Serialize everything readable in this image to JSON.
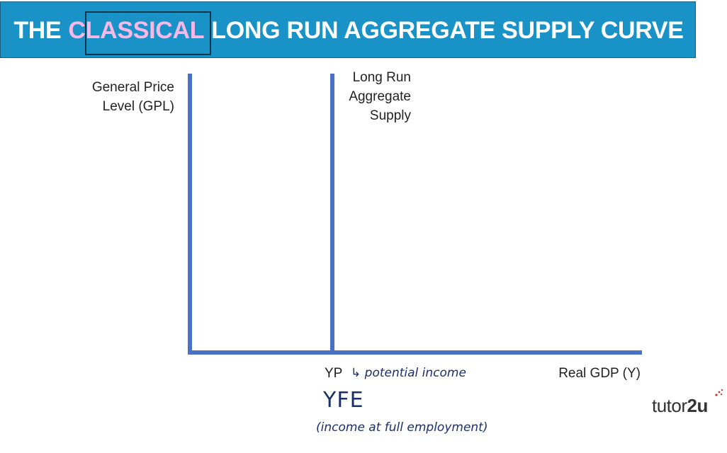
{
  "header": {
    "title_pre": "THE",
    "title_highlight": "CLASSICAL",
    "title_post": "LONG RUN AGGREGATE SUPPLY CURVE"
  },
  "diagram": {
    "y_axis_label": "General Price\nLevel (GPL)",
    "x_axis_label": "Real GDP (Y)",
    "curve_label": "Long Run\nAggregate\nSupply",
    "curve_x_label": "YP"
  },
  "annotations": {
    "potential_income": "↳ potential income",
    "yfe": "YFE",
    "full_employment": "(income at full employment)"
  },
  "brand": {
    "logo_regular": "tutor",
    "logo_bold": "2u"
  },
  "colors": {
    "banner": "#1993c7",
    "highlight_text": "#f7b8e6",
    "axis_line": "#4a72c4",
    "handwriting": "#1a2f6b"
  }
}
